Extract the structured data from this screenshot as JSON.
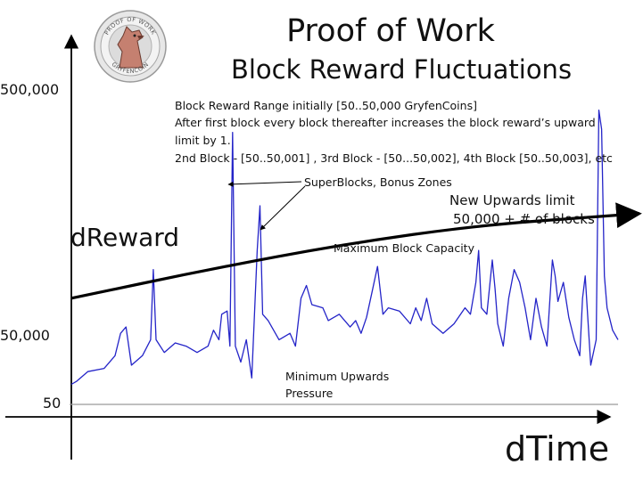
{
  "title": "Proof of Work",
  "subtitle": "Block Reward Fluctuations",
  "logo": {
    "top_text": "PROOF OF WORK",
    "bottom_text": "GRYFENCOIN",
    "icon": "gryphon-seal-icon"
  },
  "info_lines": [
    "Block Reward Range initially [50..50,000 GryfenCoins]",
    "After first block every block thereafter increases the block reward’s upward",
    "limit by 1.",
    "2nd Block - [50..50,001] , 3rd Block - [50...50,002], 4th Block [50..50,003], etc"
  ],
  "annotations": {
    "superblocks": "SuperBlocks, Bonus Zones",
    "new_limit_1": "New Upwards limit",
    "new_limit_2": "50,000 + # of blocks",
    "max_capacity": "Maximum Block Capacity",
    "min_pressure_1": "Minimum Upwards",
    "min_pressure_2": "Pressure"
  },
  "chart_data": {
    "type": "line",
    "title": "Proof of Work",
    "subtitle": "Block Reward Fluctuations",
    "xlabel": "dTime",
    "ylabel": "dReward",
    "yticks": [
      {
        "label": "500,000",
        "value": 500000
      },
      {
        "label": "50,000",
        "value": 50000
      },
      {
        "label": "50",
        "value": 50
      }
    ],
    "y_ticks_note": "non-linear schematic axis",
    "grid": false,
    "line_color": "#2424c8",
    "trend_color": "#000000",
    "series": [
      {
        "values": [
          [
            0.0,
            0.06
          ],
          [
            0.01,
            0.07
          ],
          [
            0.03,
            0.1
          ],
          [
            0.06,
            0.11
          ],
          [
            0.08,
            0.15
          ],
          [
            0.09,
            0.22
          ],
          [
            0.1,
            0.24
          ],
          [
            0.11,
            0.12
          ],
          [
            0.13,
            0.15
          ],
          [
            0.145,
            0.2
          ],
          [
            0.15,
            0.42
          ],
          [
            0.155,
            0.2
          ],
          [
            0.17,
            0.16
          ],
          [
            0.19,
            0.19
          ],
          [
            0.21,
            0.18
          ],
          [
            0.23,
            0.16
          ],
          [
            0.25,
            0.18
          ],
          [
            0.26,
            0.23
          ],
          [
            0.27,
            0.2
          ],
          [
            0.275,
            0.28
          ],
          [
            0.285,
            0.29
          ],
          [
            0.29,
            0.18
          ],
          [
            0.295,
            0.85
          ],
          [
            0.3,
            0.18
          ],
          [
            0.31,
            0.13
          ],
          [
            0.32,
            0.2
          ],
          [
            0.33,
            0.08
          ],
          [
            0.34,
            0.48
          ],
          [
            0.345,
            0.62
          ],
          [
            0.35,
            0.28
          ],
          [
            0.36,
            0.26
          ],
          [
            0.38,
            0.2
          ],
          [
            0.4,
            0.22
          ],
          [
            0.41,
            0.18
          ],
          [
            0.42,
            0.33
          ],
          [
            0.43,
            0.37
          ],
          [
            0.44,
            0.31
          ],
          [
            0.46,
            0.3
          ],
          [
            0.47,
            0.26
          ],
          [
            0.49,
            0.28
          ],
          [
            0.51,
            0.24
          ],
          [
            0.52,
            0.26
          ],
          [
            0.53,
            0.22
          ],
          [
            0.54,
            0.27
          ],
          [
            0.55,
            0.35
          ],
          [
            0.56,
            0.43
          ],
          [
            0.57,
            0.28
          ],
          [
            0.58,
            0.3
          ],
          [
            0.6,
            0.29
          ],
          [
            0.62,
            0.25
          ],
          [
            0.63,
            0.3
          ],
          [
            0.64,
            0.26
          ],
          [
            0.65,
            0.33
          ],
          [
            0.66,
            0.25
          ],
          [
            0.68,
            0.22
          ],
          [
            0.7,
            0.25
          ],
          [
            0.72,
            0.3
          ],
          [
            0.73,
            0.28
          ],
          [
            0.74,
            0.38
          ],
          [
            0.745,
            0.48
          ],
          [
            0.75,
            0.3
          ],
          [
            0.76,
            0.28
          ],
          [
            0.77,
            0.45
          ],
          [
            0.775,
            0.36
          ],
          [
            0.78,
            0.25
          ],
          [
            0.79,
            0.18
          ],
          [
            0.8,
            0.33
          ],
          [
            0.81,
            0.42
          ],
          [
            0.82,
            0.38
          ],
          [
            0.83,
            0.3
          ],
          [
            0.84,
            0.2
          ],
          [
            0.85,
            0.33
          ],
          [
            0.86,
            0.24
          ],
          [
            0.87,
            0.18
          ],
          [
            0.88,
            0.45
          ],
          [
            0.885,
            0.4
          ],
          [
            0.89,
            0.32
          ],
          [
            0.9,
            0.38
          ],
          [
            0.91,
            0.27
          ],
          [
            0.92,
            0.2
          ],
          [
            0.93,
            0.15
          ],
          [
            0.935,
            0.33
          ],
          [
            0.94,
            0.4
          ],
          [
            0.95,
            0.12
          ],
          [
            0.96,
            0.2
          ],
          [
            0.965,
            0.92
          ],
          [
            0.97,
            0.86
          ],
          [
            0.975,
            0.4
          ],
          [
            0.98,
            0.3
          ],
          [
            0.99,
            0.23
          ],
          [
            1.0,
            0.2
          ]
        ]
      }
    ],
    "trend": [
      [
        0.0,
        0.33
      ],
      [
        0.25,
        0.42
      ],
      [
        0.5,
        0.5
      ],
      [
        0.75,
        0.56
      ],
      [
        1.0,
        0.59
      ]
    ]
  }
}
